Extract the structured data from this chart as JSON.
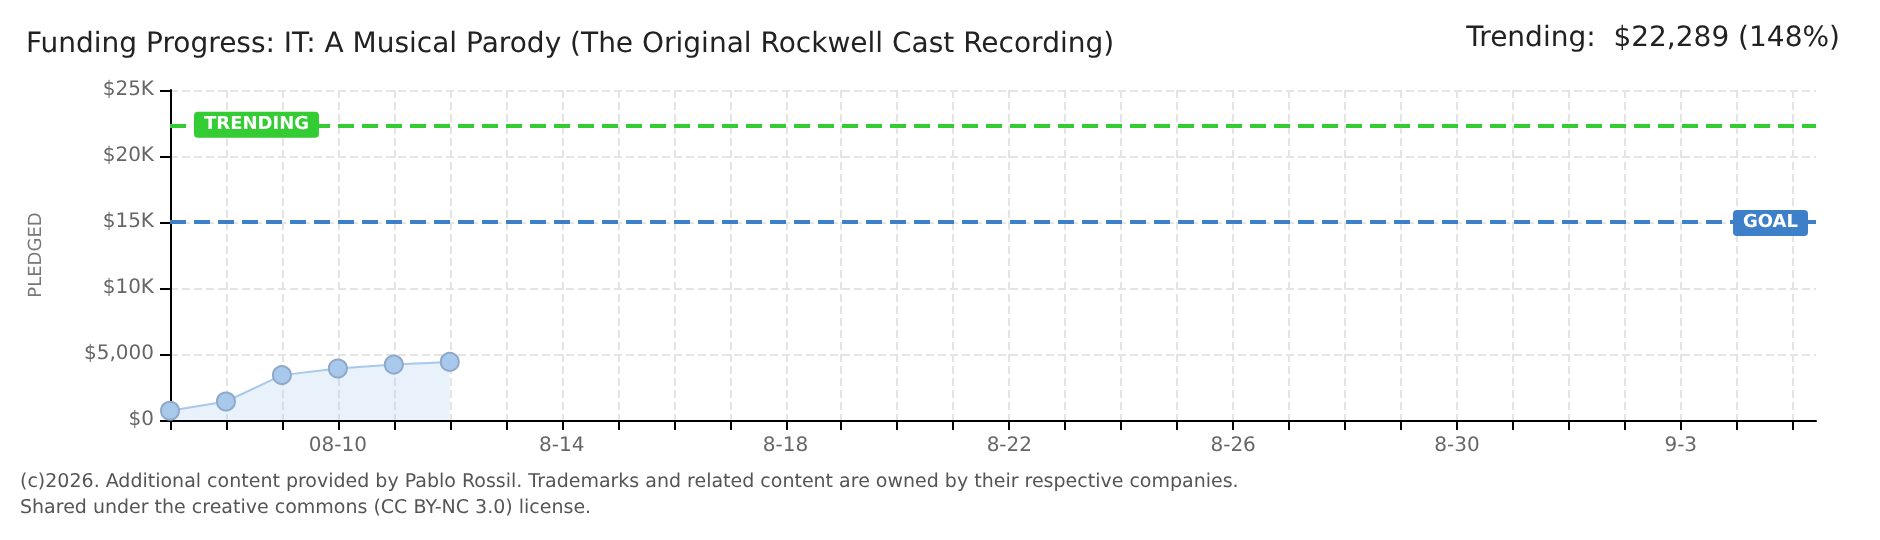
{
  "chart_data": {
    "type": "area",
    "title": "Funding Progress: IT: A Musical Parody (The Original Rockwell Cast Recording)",
    "ylabel": "PLEDGED",
    "annotations": [
      "Trending:  $22,289 (148%)",
      "(c)2026. Additional content provided by Pablo Rossil. Trademarks and related content are owned by their respective companies.",
      "Shared under the creative commons (CC BY-NC 3.0) license."
    ],
    "x": [
      "--08-07",
      "--08-08",
      "--08-09",
      "--08-10",
      "--08-11",
      "--08-12"
    ],
    "series": [
      {
        "color": "#a8c8ec",
        "values": [
          700,
          1400,
          3400,
          3900,
          4200,
          4400
        ]
      }
    ],
    "xlim": [
      "--08-07",
      "--09-05T10:00"
    ],
    "xticks": [
      {
        "value": "--08-07",
        "label": null
      },
      {
        "value": "--08-08",
        "label": null
      },
      {
        "value": "--08-09",
        "label": null
      },
      {
        "value": "--08-10",
        "label": "08-10"
      },
      {
        "value": "--08-11",
        "label": null
      },
      {
        "value": "--08-12",
        "label": null
      },
      {
        "value": "--08-13",
        "label": null
      },
      {
        "value": "--08-14",
        "label": "8-14"
      },
      {
        "value": "--08-15",
        "label": null
      },
      {
        "value": "--08-16",
        "label": null
      },
      {
        "value": "--08-17",
        "label": null
      },
      {
        "value": "--08-18",
        "label": "8-18"
      },
      {
        "value": "--08-19",
        "label": null
      },
      {
        "value": "--08-20",
        "label": null
      },
      {
        "value": "--08-21",
        "label": null
      },
      {
        "value": "--08-22",
        "label": "8-22"
      },
      {
        "value": "--08-23",
        "label": null
      },
      {
        "value": "--08-24",
        "label": null
      },
      {
        "value": "--08-25",
        "label": null
      },
      {
        "value": "--08-26",
        "label": "8-26"
      },
      {
        "value": "--08-27",
        "label": null
      },
      {
        "value": "--08-28",
        "label": null
      },
      {
        "value": "--08-29",
        "label": null
      },
      {
        "value": "--08-30",
        "label": "8-30"
      },
      {
        "value": "--08-31",
        "label": null
      },
      {
        "value": "--09-01",
        "label": null
      },
      {
        "value": "--09-02",
        "label": null
      },
      {
        "value": "--09-03",
        "label": "9-3"
      },
      {
        "value": "--09-04",
        "label": null
      },
      {
        "value": "--09-05",
        "label": null
      }
    ],
    "ylim": [
      0,
      25000
    ],
    "yticks": [
      {
        "value": 0,
        "label": "$0"
      },
      {
        "value": 5000,
        "label": "$5,000"
      },
      {
        "value": 10000,
        "label": "$10K"
      },
      {
        "value": 15000,
        "label": "$15K"
      },
      {
        "value": 20000,
        "label": "$20K"
      },
      {
        "value": 25000,
        "label": "$25K"
      }
    ],
    "ref_lines": [
      {
        "axis": "y",
        "value": 22289,
        "label": "TRENDING",
        "color": "#33cc33",
        "line_style": "dashed"
      },
      {
        "axis": "y",
        "value": 15000,
        "label": "GOAL",
        "color": "#3d80c9",
        "line_style": "dashed"
      }
    ],
    "grid": true,
    "marker": "circle"
  }
}
